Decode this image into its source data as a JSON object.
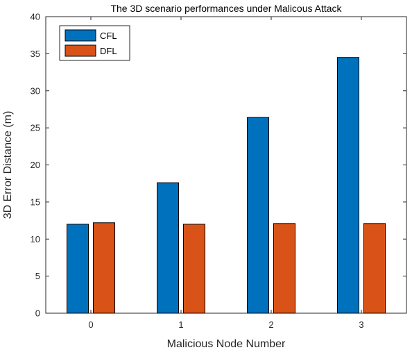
{
  "chart_data": {
    "type": "bar",
    "title": "The 3D scenario performances under Malicous Attack",
    "xlabel": "Malicious Node Number",
    "ylabel": "3D Error Distance (m)",
    "categories": [
      "0",
      "1",
      "2",
      "3"
    ],
    "series": [
      {
        "name": "CFL",
        "color": "#0072BD",
        "values": [
          12.0,
          17.6,
          26.4,
          34.5
        ]
      },
      {
        "name": "DFL",
        "color": "#D95319",
        "values": [
          12.2,
          12.0,
          12.1,
          12.1
        ]
      }
    ],
    "ylim": [
      0,
      40
    ],
    "yticks": [
      0,
      5,
      10,
      15,
      20,
      25,
      30,
      35,
      40
    ],
    "grid": false,
    "legend_position": "top-left"
  }
}
